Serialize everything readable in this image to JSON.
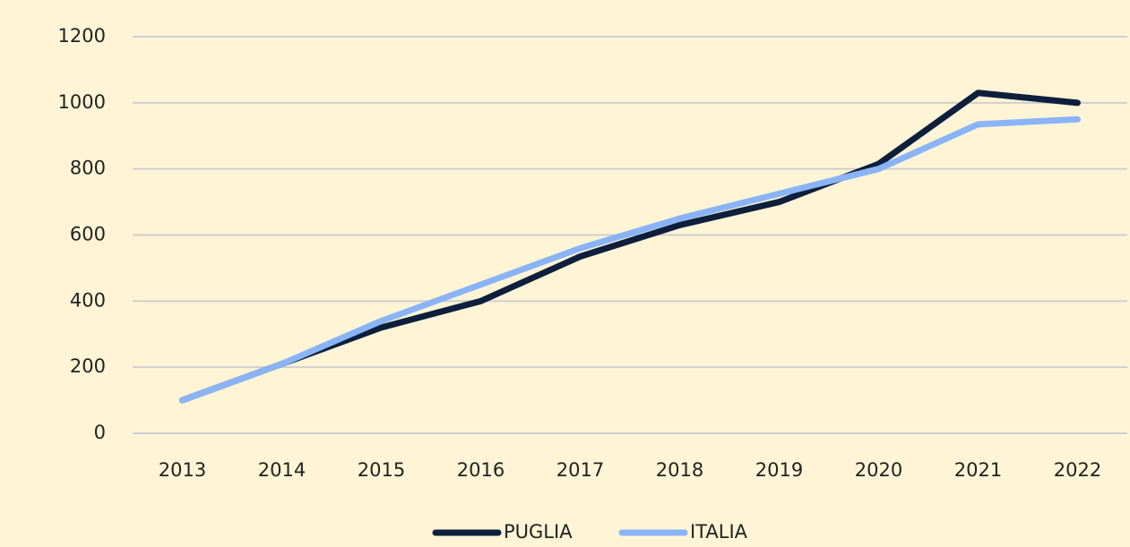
{
  "chart_data": {
    "type": "line",
    "categories": [
      "2013",
      "2014",
      "2015",
      "2016",
      "2017",
      "2018",
      "2019",
      "2020",
      "2021",
      "2022"
    ],
    "series": [
      {
        "name": "PUGLIA",
        "color": "#0d1f3c",
        "values": [
          100,
          210,
          320,
          400,
          535,
          630,
          700,
          815,
          1030,
          1000
        ]
      },
      {
        "name": "ITALIA",
        "color": "#8ab4f8",
        "values": [
          100,
          210,
          340,
          450,
          560,
          650,
          725,
          800,
          935,
          950
        ]
      }
    ],
    "ylim": [
      0,
      1200
    ],
    "yticks": [
      0,
      200,
      400,
      600,
      800,
      1000,
      1200
    ],
    "grid": true,
    "legend": "bottom"
  }
}
